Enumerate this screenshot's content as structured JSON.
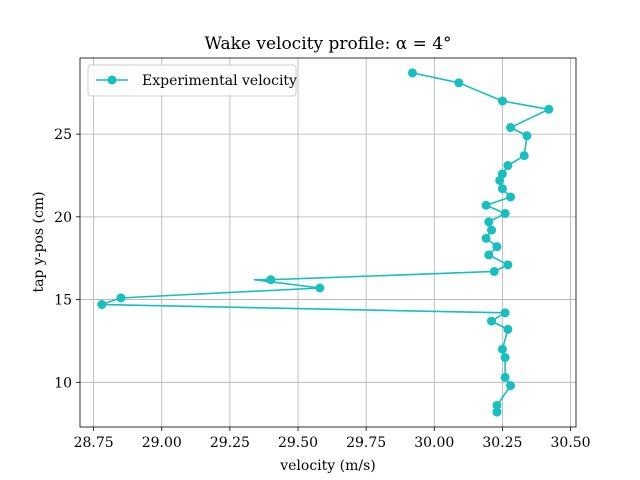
{
  "chart_data": {
    "type": "line",
    "title": "Wake velocity profile: α = 4°",
    "xlabel": "velocity (m/s)",
    "ylabel": "tap y-pos (cm)",
    "xlim": [
      28.7,
      30.52
    ],
    "ylim": [
      7.3,
      29.6
    ],
    "xticks": [
      28.75,
      29.0,
      29.25,
      29.5,
      29.75,
      30.0,
      30.25,
      30.5
    ],
    "xtick_labels": [
      "28.75",
      "29.00",
      "29.25",
      "29.50",
      "29.75",
      "30.00",
      "30.25",
      "30.50"
    ],
    "yticks": [
      10,
      15,
      20,
      25
    ],
    "ytick_labels": [
      "10",
      "15",
      "20",
      "25"
    ],
    "grid": true,
    "legend_position": "top-left",
    "color": "#17bfbf",
    "series": [
      {
        "name": "Experimental velocity",
        "marker": "circle",
        "points": [
          {
            "x": 29.92,
            "y": 28.7
          },
          {
            "x": 30.09,
            "y": 28.1
          },
          {
            "x": 30.25,
            "y": 27.0
          },
          {
            "x": 30.42,
            "y": 26.5
          },
          {
            "x": 30.28,
            "y": 25.4
          },
          {
            "x": 30.34,
            "y": 24.9
          },
          {
            "x": 30.33,
            "y": 23.7
          },
          {
            "x": 30.27,
            "y": 23.1
          },
          {
            "x": 30.25,
            "y": 22.6
          },
          {
            "x": 30.24,
            "y": 22.2
          },
          {
            "x": 30.25,
            "y": 21.7
          },
          {
            "x": 30.28,
            "y": 21.2
          },
          {
            "x": 30.19,
            "y": 20.7
          },
          {
            "x": 30.26,
            "y": 20.2
          },
          {
            "x": 30.2,
            "y": 19.7
          },
          {
            "x": 30.21,
            "y": 19.2
          },
          {
            "x": 30.19,
            "y": 18.7
          },
          {
            "x": 30.23,
            "y": 18.2
          },
          {
            "x": 30.2,
            "y": 17.7
          },
          {
            "x": 30.27,
            "y": 17.1
          },
          {
            "x": 30.22,
            "y": 16.7
          },
          {
            "x": 29.4,
            "y": 16.2
          },
          {
            "x": 29.34,
            "y": 16.2
          },
          {
            "x": 29.58,
            "y": 15.7
          },
          {
            "x": 28.85,
            "y": 15.1
          },
          {
            "x": 28.78,
            "y": 14.7
          },
          {
            "x": 30.26,
            "y": 14.2
          },
          {
            "x": 30.21,
            "y": 13.7
          },
          {
            "x": 30.27,
            "y": 13.2
          },
          {
            "x": 30.25,
            "y": 12.0
          },
          {
            "x": 30.26,
            "y": 11.5
          },
          {
            "x": 30.26,
            "y": 10.3
          },
          {
            "x": 30.28,
            "y": 9.8
          },
          {
            "x": 30.23,
            "y": 8.6
          },
          {
            "x": 30.23,
            "y": 8.2
          }
        ],
        "marker_mask": [
          1,
          1,
          1,
          1,
          1,
          1,
          1,
          1,
          1,
          1,
          1,
          1,
          1,
          1,
          1,
          1,
          1,
          1,
          1,
          1,
          1,
          1,
          0,
          1,
          1,
          1,
          1,
          1,
          1,
          1,
          1,
          1,
          1,
          1,
          1
        ]
      }
    ]
  }
}
